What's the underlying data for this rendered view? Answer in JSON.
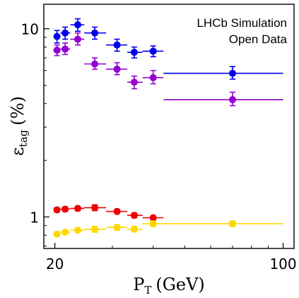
{
  "chart_data": {
    "type": "scatter",
    "x_scale": "log",
    "y_scale": "log",
    "xlim": [
      18.5,
      108
    ],
    "ylim": [
      0.68,
      13.5
    ],
    "x_ticks": [
      {
        "value": 20,
        "label": "20"
      },
      {
        "value": 100,
        "label": "100"
      }
    ],
    "y_ticks": [
      {
        "value": 1,
        "label": "1"
      },
      {
        "value": 10,
        "label": "10"
      }
    ],
    "xlabel": "P_T (GeV)",
    "xlabel_main": "P",
    "xlabel_sub": "T",
    "xlabel_unit": "(GeV)",
    "ylabel": "ε_tag (%)",
    "ylabel_main": "ε",
    "ylabel_sub": "tag",
    "ylabel_unit": "(%)",
    "annotations": [
      "LHCb Simulation",
      "Open Data"
    ],
    "grid": false,
    "error_bars": true,
    "series": [
      {
        "color": "#0000ee",
        "points": [
          {
            "x": 20.3,
            "xlo": 19.8,
            "xhi": 20.8,
            "y": 9.1,
            "ylo": 8.4,
            "yhi": 9.8
          },
          {
            "x": 21.5,
            "xlo": 20.8,
            "xhi": 22.3,
            "y": 9.5,
            "ylo": 8.8,
            "yhi": 10.2
          },
          {
            "x": 23.5,
            "xlo": 22.3,
            "xhi": 24.6,
            "y": 10.5,
            "ylo": 9.7,
            "yhi": 11.3
          },
          {
            "x": 26.5,
            "xlo": 24.6,
            "xhi": 28.7,
            "y": 9.5,
            "ylo": 8.8,
            "yhi": 10.2
          },
          {
            "x": 31,
            "xlo": 28.7,
            "xhi": 33.3,
            "y": 8.2,
            "ylo": 7.6,
            "yhi": 8.8
          },
          {
            "x": 35,
            "xlo": 33.3,
            "xhi": 37.1,
            "y": 7.5,
            "ylo": 7.0,
            "yhi": 8.0
          },
          {
            "x": 40,
            "xlo": 37.1,
            "xhi": 43,
            "y": 7.6,
            "ylo": 7.1,
            "yhi": 8.1
          },
          {
            "x": 70,
            "xlo": 43,
            "xhi": 100,
            "y": 5.8,
            "ylo": 5.4,
            "yhi": 6.3
          }
        ]
      },
      {
        "color": "#9400d3",
        "points": [
          {
            "x": 20.3,
            "xlo": 19.8,
            "xhi": 20.8,
            "y": 7.7,
            "ylo": 7.2,
            "yhi": 8.2
          },
          {
            "x": 21.5,
            "xlo": 20.8,
            "xhi": 22.3,
            "y": 7.8,
            "ylo": 7.3,
            "yhi": 8.4
          },
          {
            "x": 23.5,
            "xlo": 22.3,
            "xhi": 24.6,
            "y": 8.8,
            "ylo": 8.2,
            "yhi": 9.5
          },
          {
            "x": 26.5,
            "xlo": 24.6,
            "xhi": 28.7,
            "y": 6.5,
            "ylo": 6.1,
            "yhi": 7.0
          },
          {
            "x": 31,
            "xlo": 28.7,
            "xhi": 33.3,
            "y": 6.1,
            "ylo": 5.7,
            "yhi": 6.6
          },
          {
            "x": 35,
            "xlo": 33.3,
            "xhi": 37.1,
            "y": 5.2,
            "ylo": 4.8,
            "yhi": 5.6
          },
          {
            "x": 40,
            "xlo": 37.1,
            "xhi": 43,
            "y": 5.5,
            "ylo": 5.1,
            "yhi": 6.0
          },
          {
            "x": 70,
            "xlo": 43,
            "xhi": 100,
            "y": 4.2,
            "ylo": 3.9,
            "yhi": 4.6
          }
        ]
      },
      {
        "color": "#ee0000",
        "points": [
          {
            "x": 20.3,
            "xlo": 19.8,
            "xhi": 20.8,
            "y": 1.09,
            "ylo": 1.06,
            "yhi": 1.12
          },
          {
            "x": 21.5,
            "xlo": 20.8,
            "xhi": 22.3,
            "y": 1.1,
            "ylo": 1.07,
            "yhi": 1.13
          },
          {
            "x": 23.5,
            "xlo": 22.3,
            "xhi": 24.6,
            "y": 1.11,
            "ylo": 1.08,
            "yhi": 1.14
          },
          {
            "x": 26.5,
            "xlo": 24.6,
            "xhi": 28.7,
            "y": 1.12,
            "ylo": 1.08,
            "yhi": 1.16
          },
          {
            "x": 31,
            "xlo": 28.7,
            "xhi": 33.3,
            "y": 1.07,
            "ylo": 1.04,
            "yhi": 1.1
          },
          {
            "x": 35,
            "xlo": 33.3,
            "xhi": 37.1,
            "y": 1.02,
            "ylo": 0.99,
            "yhi": 1.05
          },
          {
            "x": 40,
            "xlo": 37.1,
            "xhi": 43,
            "y": 0.99,
            "ylo": 0.97,
            "yhi": 1.01
          }
        ]
      },
      {
        "color": "#ffd700",
        "points": [
          {
            "x": 20.3,
            "xlo": 19.8,
            "xhi": 20.8,
            "y": 0.81,
            "ylo": 0.79,
            "yhi": 0.83
          },
          {
            "x": 21.5,
            "xlo": 20.8,
            "xhi": 22.3,
            "y": 0.83,
            "ylo": 0.81,
            "yhi": 0.85
          },
          {
            "x": 23.5,
            "xlo": 22.3,
            "xhi": 24.6,
            "y": 0.85,
            "ylo": 0.83,
            "yhi": 0.87
          },
          {
            "x": 26.5,
            "xlo": 24.6,
            "xhi": 28.7,
            "y": 0.86,
            "ylo": 0.83,
            "yhi": 0.89
          },
          {
            "x": 31,
            "xlo": 28.7,
            "xhi": 33.3,
            "y": 0.88,
            "ylo": 0.85,
            "yhi": 0.91
          },
          {
            "x": 35,
            "xlo": 33.3,
            "xhi": 37.1,
            "y": 0.86,
            "ylo": 0.84,
            "yhi": 0.89
          },
          {
            "x": 40,
            "xlo": 37.1,
            "xhi": 43,
            "y": 0.92,
            "ylo": 0.89,
            "yhi": 0.95
          },
          {
            "x": 70,
            "xlo": 43,
            "xhi": 100,
            "y": 0.92,
            "ylo": 0.89,
            "yhi": 0.95
          }
        ]
      }
    ]
  }
}
